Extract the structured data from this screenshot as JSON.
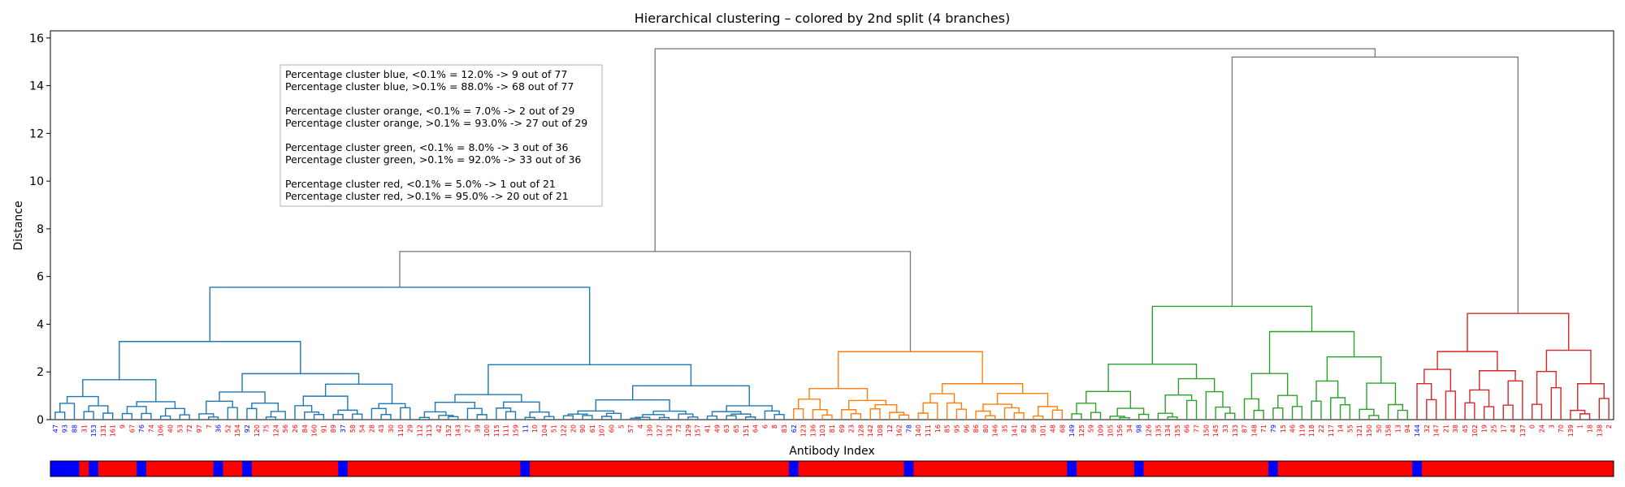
{
  "chart_data": {
    "type": "dendrogram",
    "title": "Hierarchical clustering – colored by 2nd split (4 branches)",
    "xlabel": "Antibody Index",
    "ylabel": "Distance",
    "ylim": [
      0,
      16.3
    ],
    "yticks": [
      0,
      2,
      4,
      6,
      8,
      10,
      12,
      14,
      16
    ],
    "legend_position": "top-left",
    "colors": {
      "blue": "#1f77b4",
      "orange": "#ff7f0e",
      "green": "#2ca02c",
      "red": "#d62728",
      "link": "#808080",
      "label_blue": "#0000ff",
      "label_red": "#ff0000"
    },
    "clusters": [
      {
        "name": "blue",
        "leaf_count": 77,
        "join_height": 5.55
      },
      {
        "name": "orange",
        "leaf_count": 29,
        "join_height": 2.85
      },
      {
        "name": "green",
        "leaf_count": 36,
        "join_height": 4.75
      },
      {
        "name": "red",
        "leaf_count": 21,
        "join_height": 4.45
      }
    ],
    "upper_merges": [
      {
        "join": "blue+orange",
        "height": 7.05
      },
      {
        "join": "green+red",
        "height": 15.2
      },
      {
        "join": "root",
        "height": 15.55
      }
    ],
    "leaves": [
      {
        "label": "47",
        "group": "lt"
      },
      {
        "label": "93",
        "group": "lt"
      },
      {
        "label": "88",
        "group": "lt"
      },
      {
        "label": "31",
        "group": "gt"
      },
      {
        "label": "153",
        "group": "lt"
      },
      {
        "label": "131",
        "group": "gt"
      },
      {
        "label": "161",
        "group": "gt"
      },
      {
        "label": "9",
        "group": "gt"
      },
      {
        "label": "67",
        "group": "gt"
      },
      {
        "label": "76",
        "group": "lt"
      },
      {
        "label": "74",
        "group": "gt"
      },
      {
        "label": "106",
        "group": "gt"
      },
      {
        "label": "40",
        "group": "gt"
      },
      {
        "label": "53",
        "group": "gt"
      },
      {
        "label": "72",
        "group": "gt"
      },
      {
        "label": "97",
        "group": "gt"
      },
      {
        "label": "7",
        "group": "gt"
      },
      {
        "label": "36",
        "group": "lt"
      },
      {
        "label": "52",
        "group": "gt"
      },
      {
        "label": "154",
        "group": "gt"
      },
      {
        "label": "92",
        "group": "lt"
      },
      {
        "label": "120",
        "group": "gt"
      },
      {
        "label": "75",
        "group": "gt"
      },
      {
        "label": "124",
        "group": "gt"
      },
      {
        "label": "56",
        "group": "gt"
      },
      {
        "label": "26",
        "group": "gt"
      },
      {
        "label": "84",
        "group": "gt"
      },
      {
        "label": "160",
        "group": "gt"
      },
      {
        "label": "91",
        "group": "gt"
      },
      {
        "label": "89",
        "group": "gt"
      },
      {
        "label": "37",
        "group": "lt"
      },
      {
        "label": "58",
        "group": "gt"
      },
      {
        "label": "54",
        "group": "gt"
      },
      {
        "label": "28",
        "group": "gt"
      },
      {
        "label": "43",
        "group": "gt"
      },
      {
        "label": "30",
        "group": "gt"
      },
      {
        "label": "110",
        "group": "gt"
      },
      {
        "label": "29",
        "group": "gt"
      },
      {
        "label": "112",
        "group": "gt"
      },
      {
        "label": "113",
        "group": "gt"
      },
      {
        "label": "42",
        "group": "gt"
      },
      {
        "label": "152",
        "group": "gt"
      },
      {
        "label": "143",
        "group": "gt"
      },
      {
        "label": "27",
        "group": "gt"
      },
      {
        "label": "39",
        "group": "gt"
      },
      {
        "label": "100",
        "group": "gt"
      },
      {
        "label": "115",
        "group": "gt"
      },
      {
        "label": "111",
        "group": "gt"
      },
      {
        "label": "159",
        "group": "gt"
      },
      {
        "label": "11",
        "group": "lt"
      },
      {
        "label": "10",
        "group": "gt"
      },
      {
        "label": "104",
        "group": "gt"
      },
      {
        "label": "51",
        "group": "gt"
      },
      {
        "label": "122",
        "group": "gt"
      },
      {
        "label": "20",
        "group": "gt"
      },
      {
        "label": "90",
        "group": "gt"
      },
      {
        "label": "61",
        "group": "gt"
      },
      {
        "label": "107",
        "group": "gt"
      },
      {
        "label": "60",
        "group": "gt"
      },
      {
        "label": "5",
        "group": "gt"
      },
      {
        "label": "57",
        "group": "gt"
      },
      {
        "label": "4",
        "group": "gt"
      },
      {
        "label": "130",
        "group": "gt"
      },
      {
        "label": "127",
        "group": "gt"
      },
      {
        "label": "132",
        "group": "gt"
      },
      {
        "label": "73",
        "group": "gt"
      },
      {
        "label": "129",
        "group": "gt"
      },
      {
        "label": "157",
        "group": "gt"
      },
      {
        "label": "41",
        "group": "gt"
      },
      {
        "label": "49",
        "group": "gt"
      },
      {
        "label": "63",
        "group": "gt"
      },
      {
        "label": "65",
        "group": "gt"
      },
      {
        "label": "151",
        "group": "gt"
      },
      {
        "label": "64",
        "group": "gt"
      },
      {
        "label": "6",
        "group": "gt"
      },
      {
        "label": "8",
        "group": "gt"
      },
      {
        "label": "83",
        "group": "gt"
      },
      {
        "label": "62",
        "group": "lt"
      },
      {
        "label": "123",
        "group": "gt"
      },
      {
        "label": "136",
        "group": "gt"
      },
      {
        "label": "103",
        "group": "gt"
      },
      {
        "label": "81",
        "group": "gt"
      },
      {
        "label": "69",
        "group": "gt"
      },
      {
        "label": "23",
        "group": "gt"
      },
      {
        "label": "128",
        "group": "gt"
      },
      {
        "label": "142",
        "group": "gt"
      },
      {
        "label": "108",
        "group": "gt"
      },
      {
        "label": "12",
        "group": "gt"
      },
      {
        "label": "162",
        "group": "gt"
      },
      {
        "label": "78",
        "group": "lt"
      },
      {
        "label": "140",
        "group": "gt"
      },
      {
        "label": "111",
        "group": "gt"
      },
      {
        "label": "16",
        "group": "gt"
      },
      {
        "label": "85",
        "group": "gt"
      },
      {
        "label": "95",
        "group": "gt"
      },
      {
        "label": "96",
        "group": "gt"
      },
      {
        "label": "86",
        "group": "gt"
      },
      {
        "label": "80",
        "group": "gt"
      },
      {
        "label": "146",
        "group": "gt"
      },
      {
        "label": "35",
        "group": "gt"
      },
      {
        "label": "141",
        "group": "gt"
      },
      {
        "label": "82",
        "group": "gt"
      },
      {
        "label": "99",
        "group": "gt"
      },
      {
        "label": "101",
        "group": "gt"
      },
      {
        "label": "48",
        "group": "gt"
      },
      {
        "label": "68",
        "group": "gt"
      },
      {
        "label": "149",
        "group": "lt"
      },
      {
        "label": "125",
        "group": "gt"
      },
      {
        "label": "59",
        "group": "gt"
      },
      {
        "label": "109",
        "group": "gt"
      },
      {
        "label": "105",
        "group": "gt"
      },
      {
        "label": "156",
        "group": "gt"
      },
      {
        "label": "34",
        "group": "gt"
      },
      {
        "label": "98",
        "group": "lt"
      },
      {
        "label": "126",
        "group": "gt"
      },
      {
        "label": "135",
        "group": "gt"
      },
      {
        "label": "134",
        "group": "gt"
      },
      {
        "label": "155",
        "group": "gt"
      },
      {
        "label": "66",
        "group": "gt"
      },
      {
        "label": "77",
        "group": "gt"
      },
      {
        "label": "150",
        "group": "gt"
      },
      {
        "label": "145",
        "group": "gt"
      },
      {
        "label": "33",
        "group": "gt"
      },
      {
        "label": "133",
        "group": "gt"
      },
      {
        "label": "87",
        "group": "gt"
      },
      {
        "label": "148",
        "group": "gt"
      },
      {
        "label": "71",
        "group": "gt"
      },
      {
        "label": "79",
        "group": "lt"
      },
      {
        "label": "15",
        "group": "gt"
      },
      {
        "label": "46",
        "group": "gt"
      },
      {
        "label": "119",
        "group": "gt"
      },
      {
        "label": "118",
        "group": "gt"
      },
      {
        "label": "22",
        "group": "gt"
      },
      {
        "label": "117",
        "group": "gt"
      },
      {
        "label": "14",
        "group": "gt"
      },
      {
        "label": "55",
        "group": "gt"
      },
      {
        "label": "121",
        "group": "gt"
      },
      {
        "label": "150",
        "group": "gt"
      },
      {
        "label": "50",
        "group": "gt"
      },
      {
        "label": "158",
        "group": "gt"
      },
      {
        "label": "13",
        "group": "gt"
      },
      {
        "label": "94",
        "group": "gt"
      },
      {
        "label": "144",
        "group": "lt"
      },
      {
        "label": "32",
        "group": "gt"
      },
      {
        "label": "147",
        "group": "gt"
      },
      {
        "label": "21",
        "group": "gt"
      },
      {
        "label": "38",
        "group": "gt"
      },
      {
        "label": "45",
        "group": "gt"
      },
      {
        "label": "102",
        "group": "gt"
      },
      {
        "label": "19",
        "group": "gt"
      },
      {
        "label": "25",
        "group": "gt"
      },
      {
        "label": "17",
        "group": "gt"
      },
      {
        "label": "44",
        "group": "gt"
      },
      {
        "label": "137",
        "group": "gt"
      },
      {
        "label": "0",
        "group": "gt"
      },
      {
        "label": "24",
        "group": "gt"
      },
      {
        "label": "3",
        "group": "gt"
      },
      {
        "label": "70",
        "group": "gt"
      },
      {
        "label": "139",
        "group": "gt"
      },
      {
        "label": "1",
        "group": "gt"
      },
      {
        "label": "18",
        "group": "gt"
      },
      {
        "label": "138",
        "group": "gt"
      },
      {
        "label": "2",
        "group": "gt"
      }
    ],
    "annotation_lines": [
      "Percentage cluster blue, <0.1% = 12.0%  -> 9  out of 77",
      "Percentage cluster blue, >0.1% = 88.0%  -> 68  out of 77",
      "",
      "Percentage cluster orange, <0.1% = 7.0%  -> 2  out of 29",
      "Percentage cluster orange, >0.1% = 93.0%  -> 27  out of 29",
      "",
      "Percentage cluster green, <0.1% = 8.0%  -> 3  out of 36",
      "Percentage cluster green, >0.1% = 92.0%  -> 33  out of 36",
      "",
      "Percentage cluster red, <0.1% = 5.0%  -> 1  out of 21",
      "Percentage cluster red, >0.1% = 95.0%  -> 20  out of 21"
    ]
  }
}
